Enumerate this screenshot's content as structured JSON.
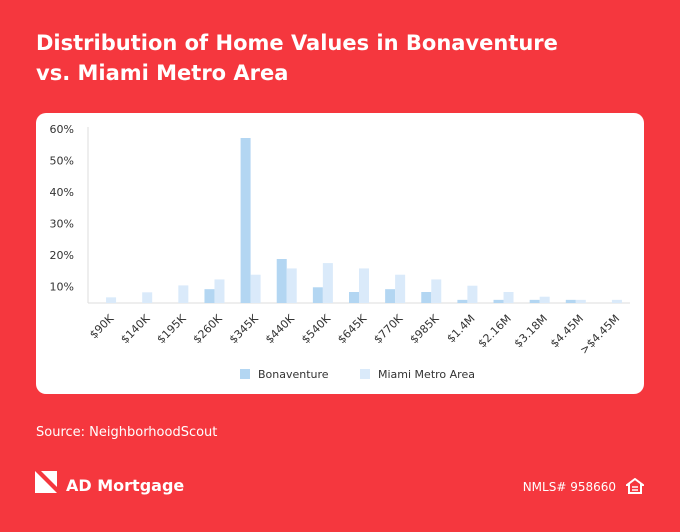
{
  "title": "Distribution of Home Values in Bonaventure vs. Miami Metro Area",
  "chart_data": {
    "type": "bar",
    "categories": [
      "$90K",
      "$140K",
      "$195K",
      "$260K",
      "$345K",
      "$440K",
      "$540K",
      "$645K",
      "$770K",
      "$985K",
      "$1.4M",
      "$2.16M",
      "$3.18M",
      "$4.45M",
      ">$4.45M"
    ],
    "series": [
      {
        "name": "Bonaventure",
        "color": "#b3d6f2",
        "values": [
          null,
          null,
          null,
          9.4,
          57.5,
          19,
          10,
          8.5,
          9.4,
          8.5,
          6,
          6,
          6,
          6,
          null
        ]
      },
      {
        "name": "Miami Metro Area",
        "color": "#daeafa",
        "values": [
          6.8,
          8.4,
          10.6,
          12.5,
          14,
          16,
          17.7,
          16,
          14,
          12.5,
          10.5,
          8.5,
          7,
          6,
          6
        ]
      }
    ],
    "ylim": [
      5,
      61
    ],
    "yticks": [
      {
        "value": 10,
        "label": "10%"
      },
      {
        "value": 20,
        "label": "20%"
      },
      {
        "value": 30,
        "label": "30%"
      },
      {
        "value": 40,
        "label": "40%"
      },
      {
        "value": 50,
        "label": "50%"
      },
      {
        "value": 60,
        "label": "60%"
      }
    ],
    "grid": false
  },
  "source": "Source: NeighborhoodScout",
  "brand": "AD Mortgage",
  "nmls": "NMLS# 958660"
}
